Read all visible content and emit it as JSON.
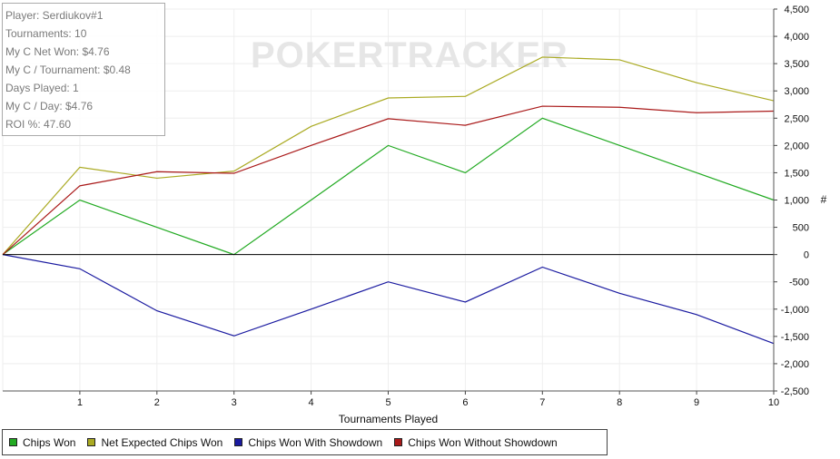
{
  "info": {
    "player": "Player: Serdiukov#1",
    "tournaments": "Tournaments: 10",
    "net_won": "My C Net Won: $4.76",
    "per_tournament": "My C / Tournament: $0.48",
    "days_played": "Days Played: 1",
    "per_day": "My C / Day: $4.76",
    "roi": "ROI %: 47.60"
  },
  "watermark": "POKERTRACKER",
  "chart_data": {
    "type": "line",
    "xlabel": "Tournaments Played",
    "ylabel": "#",
    "x": [
      0,
      1,
      2,
      3,
      4,
      5,
      6,
      7,
      8,
      9,
      10
    ],
    "xlim": [
      0,
      10
    ],
    "ylim": [
      -2500,
      4500
    ],
    "ytick_step": 500,
    "y_axis_side": "right",
    "grid": true,
    "legend_position": "bottom-left",
    "series": [
      {
        "name": "Chips Won",
        "color": "#22aa22",
        "values": [
          0,
          1000,
          500,
          0,
          1000,
          2000,
          1500,
          2500,
          2000,
          1500,
          1000
        ]
      },
      {
        "name": "Net Expected Chips Won",
        "color": "#aaaa22",
        "values": [
          0,
          1600,
          1400,
          1530,
          2350,
          2870,
          2900,
          3620,
          3570,
          3150,
          2820
        ]
      },
      {
        "name": "Chips Won With Showdown",
        "color": "#1a1aa0",
        "values": [
          0,
          -260,
          -1030,
          -1490,
          -1000,
          -500,
          -870,
          -230,
          -710,
          -1100,
          -1630
        ]
      },
      {
        "name": "Chips Won Without Showdown",
        "color": "#aa1a1a",
        "values": [
          0,
          1260,
          1520,
          1490,
          2000,
          2490,
          2370,
          2720,
          2700,
          2600,
          2630
        ]
      }
    ]
  }
}
